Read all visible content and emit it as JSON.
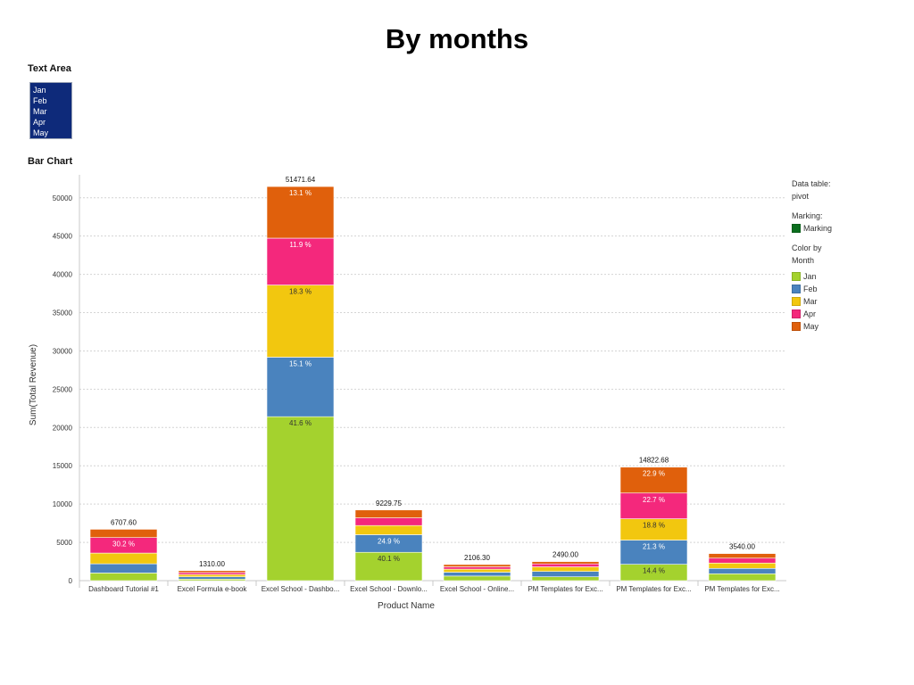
{
  "page": {
    "title": "By months"
  },
  "text_area": {
    "label": "Text Area",
    "items": [
      "Jan",
      "Feb",
      "Mar",
      "Apr",
      "May"
    ]
  },
  "bar_chart_label": "Bar Chart",
  "legend": {
    "data_table_label": "Data table:",
    "data_table_value": "pivot",
    "marking_label": "Marking:",
    "marking_item": "Marking",
    "marking_color": "#0b6e1e",
    "color_by_line1": "Color by",
    "color_by_line2": "Month"
  },
  "chart_data": {
    "type": "bar",
    "stacked": true,
    "categories": [
      "Dashboard Tutorial #1",
      "Excel Formula e-book",
      "Excel School - Dashbo...",
      "Excel School - Downlo...",
      "Excel School - Online...",
      "PM Templates  for Exc...",
      "PM Templates  for Exc...",
      "PM Templates  for Exc..."
    ],
    "series": [
      {
        "name": "Jan",
        "color": "#a4d22e",
        "values": [
          1000,
          200,
          21412,
          3701,
          600,
          500,
          2135,
          900
        ],
        "labels": [
          "",
          "",
          "41.6 %",
          "40.1 %",
          "",
          "",
          "14.4 %",
          ""
        ]
      },
      {
        "name": "Feb",
        "color": "#4a83be",
        "values": [
          1200,
          300,
          7772,
          2298,
          500,
          700,
          3157,
          700
        ],
        "labels": [
          "",
          "",
          "15.1 %",
          "24.9 %",
          "",
          "",
          "21.3 %",
          ""
        ]
      },
      {
        "name": "Mar",
        "color": "#f2c70f",
        "values": [
          1400,
          300,
          9419,
          1200,
          400,
          600,
          2787,
          700
        ],
        "labels": [
          "",
          "",
          "18.3 %",
          "",
          "",
          "",
          "18.8 %",
          ""
        ]
      },
      {
        "name": "Apr",
        "color": "#f4287c",
        "values": [
          2026,
          260,
          6125,
          1000,
          306,
          390,
          3365,
          640
        ],
        "labels": [
          "30.2 %",
          "",
          "11.9 %",
          "",
          "",
          "",
          "22.7 %",
          ""
        ]
      },
      {
        "name": "May",
        "color": "#e0600c",
        "values": [
          1082,
          250,
          6743,
          1031,
          300,
          300,
          3379,
          600
        ],
        "labels": [
          "",
          "",
          "13.1 %",
          "",
          "",
          "",
          "22.9 %",
          ""
        ]
      }
    ],
    "totals": [
      "6707.60",
      "1310.00",
      "51471.64",
      "9229.75",
      "2106.30",
      "2490.00",
      "14822.68",
      "3540.00"
    ],
    "xlabel": "Product Name",
    "ylabel": "Sum(Total Revenue)",
    "yticks": [
      0,
      5000,
      10000,
      15000,
      20000,
      25000,
      30000,
      35000,
      40000,
      45000,
      50000
    ],
    "ylim": [
      0,
      53000
    ],
    "grid": true,
    "legend_position": "right"
  }
}
